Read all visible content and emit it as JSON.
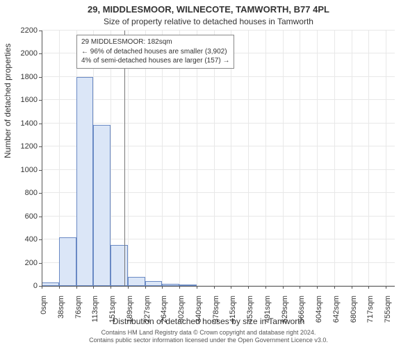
{
  "title_line1": "29, MIDDLESMOOR, WILNECOTE, TAMWORTH, B77 4PL",
  "title_line2": "Size of property relative to detached houses in Tamworth",
  "ylabel": "Number of detached properties",
  "xlabel": "Distribution of detached houses by size in Tamworth",
  "footer_line1": "Contains HM Land Registry data © Crown copyright and database right 2024.",
  "footer_line2": "Contains public sector information licensed under the Open Government Licence v3.0.",
  "chart": {
    "type": "bar",
    "xlim": [
      0,
      775
    ],
    "ylim": [
      0,
      2200
    ],
    "ytick_step": 200,
    "xtick_labels": [
      "0sqm",
      "38sqm",
      "76sqm",
      "113sqm",
      "151sqm",
      "189sqm",
      "227sqm",
      "264sqm",
      "302sqm",
      "340sqm",
      "378sqm",
      "415sqm",
      "453sqm",
      "491sqm",
      "529sqm",
      "566sqm",
      "604sqm",
      "642sqm",
      "680sqm",
      "717sqm",
      "755sqm"
    ],
    "xtick_positions": [
      0,
      38,
      76,
      113,
      151,
      189,
      227,
      264,
      302,
      340,
      378,
      415,
      453,
      491,
      529,
      566,
      604,
      642,
      680,
      717,
      755
    ],
    "bars": [
      {
        "x0": 0,
        "x1": 38,
        "value": 30
      },
      {
        "x0": 38,
        "x1": 76,
        "value": 420
      },
      {
        "x0": 76,
        "x1": 113,
        "value": 1800
      },
      {
        "x0": 113,
        "x1": 151,
        "value": 1385
      },
      {
        "x0": 151,
        "x1": 189,
        "value": 350
      },
      {
        "x0": 189,
        "x1": 227,
        "value": 80
      },
      {
        "x0": 227,
        "x1": 264,
        "value": 40
      },
      {
        "x0": 264,
        "x1": 302,
        "value": 20
      },
      {
        "x0": 302,
        "x1": 340,
        "value": 15
      }
    ],
    "bar_fill": "#dbe6f7",
    "bar_border": "#6989c4",
    "grid_color": "#e8e8e8",
    "background_color": "#ffffff",
    "marker_x": 182,
    "annotation": {
      "line1": "29 MIDDLESMOOR: 182sqm",
      "line2": "← 96% of detached houses are smaller (3,902)",
      "line3": "4% of semi-detached houses are larger (157) →"
    }
  }
}
